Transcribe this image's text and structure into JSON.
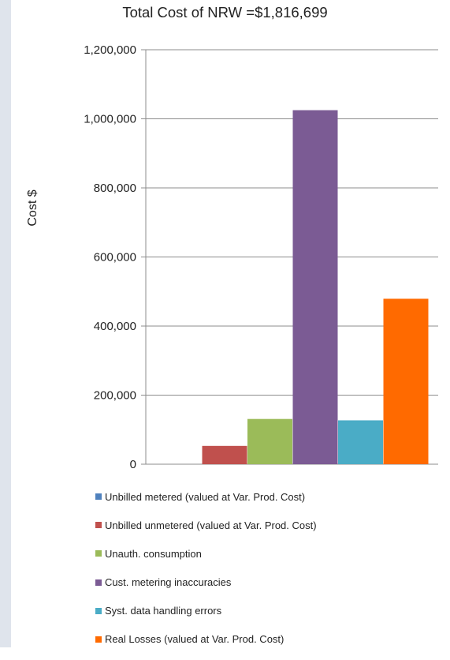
{
  "chart_data": {
    "type": "bar",
    "title": "Total Cost of NRW =$1,816,699",
    "ylabel": "Cost $",
    "xlabel": "",
    "ylim": [
      0,
      1200000
    ],
    "y_ticks": [
      0,
      200000,
      400000,
      600000,
      800000,
      1000000,
      1200000
    ],
    "y_tick_labels": [
      "0",
      "200,000",
      "400,000",
      "600,000",
      "800,000",
      "1,000,000",
      "1,200,000"
    ],
    "grid": true,
    "legend_position": "bottom",
    "series": [
      {
        "name": "Unbilled metered (valued at Var. Prod. Cost)",
        "values": [
          0
        ],
        "color": "#4f81bd"
      },
      {
        "name": "Unbilled unmetered (valued at Var. Prod. Cost)",
        "values": [
          53000
        ],
        "color": "#c0504d"
      },
      {
        "name": "Unauth. consumption",
        "values": [
          131000
        ],
        "color": "#9bbb59"
      },
      {
        "name": "Cust. metering inaccuracies",
        "values": [
          1025000
        ],
        "color": "#7b5b94"
      },
      {
        "name": "Syst. data handling errors",
        "values": [
          127000
        ],
        "color": "#4aacc6"
      },
      {
        "name": "Real Losses (valued at Var. Prod. Cost)",
        "values": [
          479000
        ],
        "color": "#ff6a00"
      }
    ]
  }
}
